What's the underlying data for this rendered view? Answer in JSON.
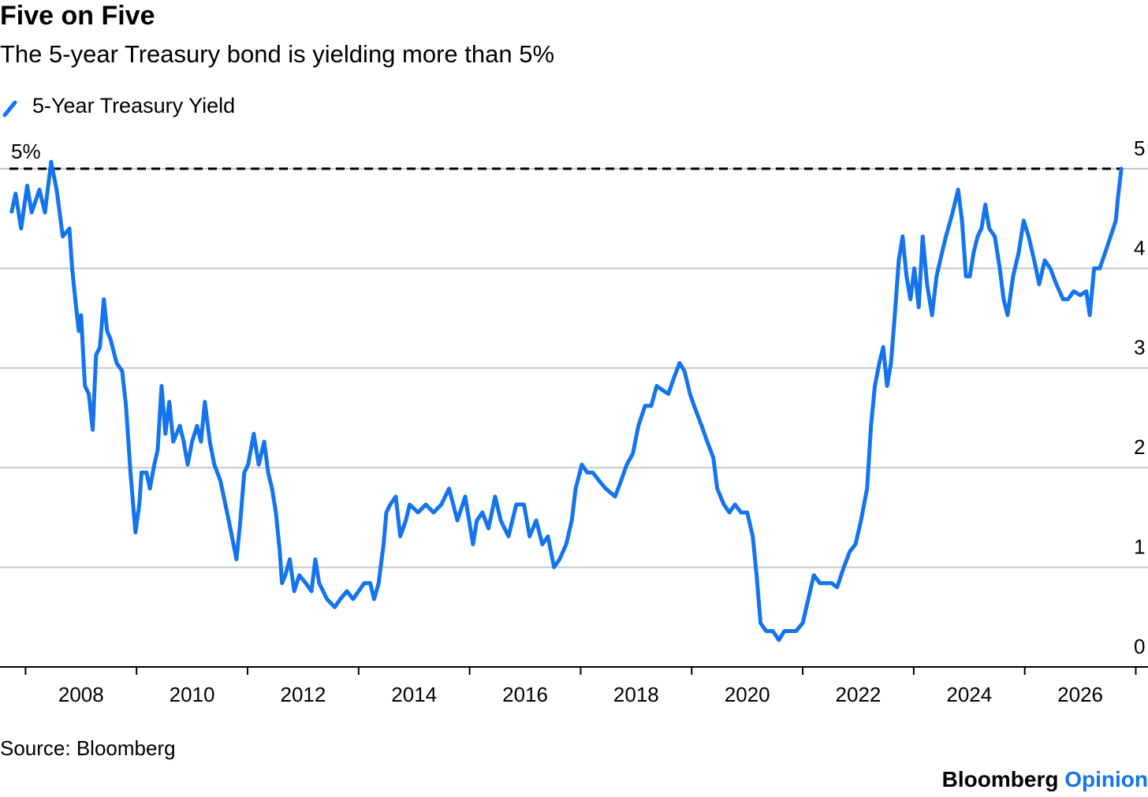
{
  "chart_data": {
    "type": "line",
    "title": "Five on Five",
    "subtitle": "The 5-year Treasury bond is yielding more than 5%",
    "source": "Source: Bloomberg",
    "brand": "Bloomberg",
    "brand_suffix": "Opinion",
    "reference_line": {
      "value": 5,
      "label": "5%"
    },
    "xlim": [
      2006.54,
      2027.22
    ],
    "xticks": [
      2008,
      2010,
      2012,
      2014,
      2016,
      2018,
      2020,
      2022,
      2024,
      2026
    ],
    "xminorticks": [
      2007,
      2009,
      2011,
      2013,
      2015,
      2017,
      2019,
      2021,
      2023,
      2025,
      2027
    ],
    "ylim": [
      0,
      5
    ],
    "yticks": [
      0,
      1,
      2,
      3,
      4,
      5
    ],
    "grid": true,
    "x": [
      2006.75,
      2006.82,
      2006.92,
      2007.03,
      2007.11,
      2007.25,
      2007.35,
      2007.46,
      2007.56,
      2007.67,
      2007.79,
      2007.84,
      2007.91,
      2007.96,
      2008.0,
      2008.07,
      2008.14,
      2008.21,
      2008.27,
      2008.34,
      2008.41,
      2008.47,
      2008.53,
      2008.64,
      2008.74,
      2008.81,
      2008.89,
      2008.98,
      2009.05,
      2009.09,
      2009.18,
      2009.24,
      2009.32,
      2009.38,
      2009.45,
      2009.52,
      2009.59,
      2009.66,
      2009.78,
      2009.85,
      2009.92,
      2010.0,
      2010.09,
      2010.16,
      2010.23,
      2010.32,
      2010.4,
      2010.51,
      2010.66,
      2010.8,
      2010.87,
      2010.94,
      2011.01,
      2011.11,
      2011.2,
      2011.3,
      2011.37,
      2011.44,
      2011.51,
      2011.58,
      2011.62,
      2011.68,
      2011.76,
      2011.84,
      2011.93,
      2012.05,
      2012.15,
      2012.22,
      2012.29,
      2012.36,
      2012.43,
      2012.57,
      2012.67,
      2012.79,
      2012.9,
      2013.0,
      2013.1,
      2013.21,
      2013.28,
      2013.36,
      2013.45,
      2013.5,
      2013.57,
      2013.67,
      2013.75,
      2013.85,
      2013.92,
      2014.07,
      2014.21,
      2014.35,
      2014.49,
      2014.63,
      2014.78,
      2014.92,
      2015.06,
      2015.13,
      2015.23,
      2015.34,
      2015.46,
      2015.56,
      2015.7,
      2015.84,
      2015.98,
      2016.08,
      2016.2,
      2016.31,
      2016.41,
      2016.52,
      2016.62,
      2016.74,
      2016.84,
      2016.91,
      2017.02,
      2017.12,
      2017.22,
      2017.33,
      2017.45,
      2017.62,
      2017.73,
      2017.83,
      2017.94,
      2018.04,
      2018.16,
      2018.27,
      2018.37,
      2018.47,
      2018.58,
      2018.68,
      2018.78,
      2018.87,
      2018.97,
      2019.07,
      2019.18,
      2019.28,
      2019.39,
      2019.46,
      2019.58,
      2019.68,
      2019.78,
      2019.89,
      2020.0,
      2020.1,
      2020.17,
      2020.24,
      2020.34,
      2020.46,
      2020.57,
      2020.67,
      2020.77,
      2020.88,
      2021.0,
      2021.1,
      2021.2,
      2021.31,
      2021.42,
      2021.52,
      2021.62,
      2021.74,
      2021.85,
      2021.95,
      2022.05,
      2022.16,
      2022.23,
      2022.3,
      2022.38,
      2022.45,
      2022.52,
      2022.59,
      2022.66,
      2022.73,
      2022.8,
      2022.87,
      2022.94,
      2023.01,
      2023.09,
      2023.16,
      2023.24,
      2023.33,
      2023.41,
      2023.51,
      2023.58,
      2023.7,
      2023.8,
      2023.87,
      2023.94,
      2024.01,
      2024.08,
      2024.15,
      2024.22,
      2024.29,
      2024.36,
      2024.46,
      2024.55,
      2024.62,
      2024.69,
      2024.79,
      2024.89,
      2024.98,
      2025.07,
      2025.17,
      2025.26,
      2025.36,
      2025.46,
      2025.57,
      2025.69,
      2025.78,
      2025.88,
      2026.0,
      2026.11,
      2026.17,
      2026.25,
      2026.35,
      2026.45,
      2026.57,
      2026.64,
      2026.68,
      2026.74
    ],
    "series": [
      {
        "name": "5-Year Treasury Yield",
        "color": "#1474ee",
        "values": [
          4.57,
          4.75,
          4.4,
          4.83,
          4.56,
          4.79,
          4.56,
          5.07,
          4.79,
          4.32,
          4.4,
          4.0,
          3.61,
          3.37,
          3.53,
          2.82,
          2.74,
          2.38,
          3.13,
          3.21,
          3.69,
          3.37,
          3.29,
          3.05,
          2.97,
          2.62,
          1.95,
          1.35,
          1.63,
          1.95,
          1.95,
          1.79,
          2.03,
          2.18,
          2.82,
          2.34,
          2.66,
          2.26,
          2.42,
          2.26,
          2.03,
          2.26,
          2.42,
          2.26,
          2.66,
          2.26,
          2.03,
          1.87,
          1.47,
          1.08,
          1.47,
          1.95,
          2.03,
          2.34,
          2.03,
          2.26,
          1.95,
          1.79,
          1.55,
          1.16,
          0.84,
          0.92,
          1.08,
          0.76,
          0.92,
          0.84,
          0.76,
          1.08,
          0.84,
          0.76,
          0.68,
          0.6,
          0.68,
          0.76,
          0.68,
          0.76,
          0.84,
          0.84,
          0.68,
          0.84,
          1.23,
          1.55,
          1.63,
          1.71,
          1.31,
          1.47,
          1.63,
          1.55,
          1.63,
          1.55,
          1.63,
          1.79,
          1.47,
          1.71,
          1.23,
          1.47,
          1.55,
          1.39,
          1.71,
          1.47,
          1.31,
          1.63,
          1.63,
          1.31,
          1.47,
          1.23,
          1.31,
          1.0,
          1.08,
          1.23,
          1.47,
          1.79,
          2.03,
          1.95,
          1.95,
          1.87,
          1.79,
          1.71,
          1.87,
          2.03,
          2.14,
          2.42,
          2.62,
          2.62,
          2.82,
          2.78,
          2.74,
          2.9,
          3.05,
          2.97,
          2.74,
          2.58,
          2.42,
          2.26,
          2.1,
          1.79,
          1.63,
          1.55,
          1.63,
          1.55,
          1.55,
          1.31,
          0.92,
          0.44,
          0.36,
          0.36,
          0.27,
          0.36,
          0.36,
          0.36,
          0.44,
          0.68,
          0.92,
          0.84,
          0.84,
          0.84,
          0.8,
          1.0,
          1.16,
          1.23,
          1.47,
          1.79,
          2.42,
          2.82,
          3.05,
          3.21,
          2.82,
          3.05,
          3.53,
          4.08,
          4.32,
          3.92,
          3.69,
          4.0,
          3.61,
          4.32,
          3.84,
          3.53,
          3.92,
          4.16,
          4.32,
          4.56,
          4.79,
          4.48,
          3.92,
          3.92,
          4.16,
          4.32,
          4.4,
          4.64,
          4.4,
          4.32,
          4.0,
          3.69,
          3.53,
          3.92,
          4.16,
          4.48,
          4.32,
          4.08,
          3.84,
          4.08,
          4.0,
          3.84,
          3.69,
          3.69,
          3.77,
          3.73,
          3.77,
          3.53,
          4.0,
          4.0,
          4.16,
          4.36,
          4.48,
          4.72,
          5.0
        ]
      }
    ]
  }
}
